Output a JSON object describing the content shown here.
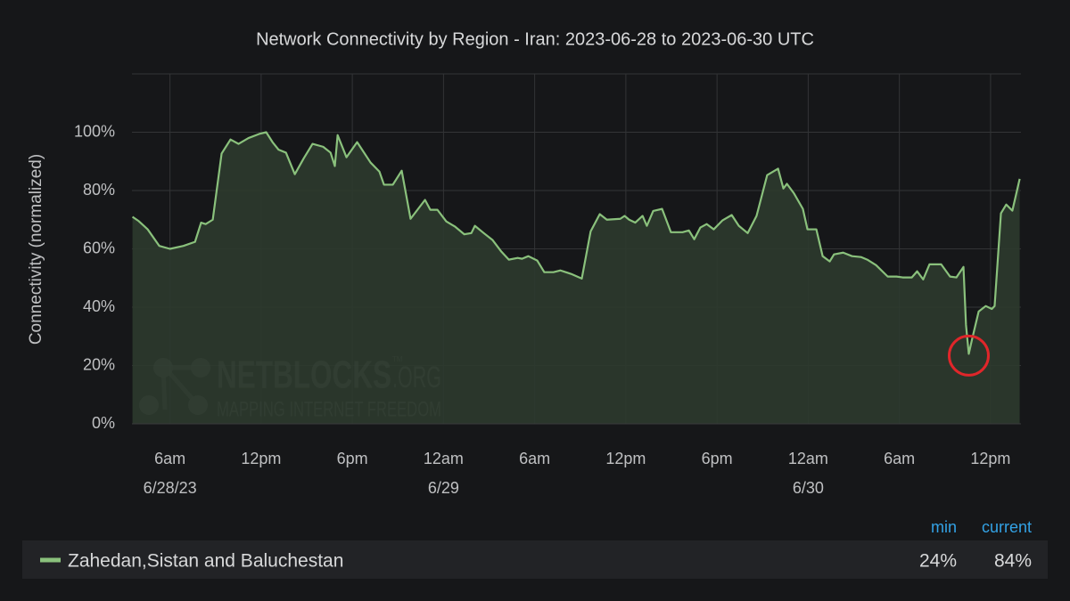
{
  "chart_data": {
    "type": "area",
    "title": "Network Connectivity by Region - Iran: 2023-06-28 to 2023-06-30 UTC",
    "y_label": "Connectivity (normalized)",
    "xlim": [
      "2023-06-28T03:30",
      "2023-06-30T14:00"
    ],
    "ylim": [
      0,
      120
    ],
    "yticks": [
      {
        "value": 0,
        "label": "0%"
      },
      {
        "value": 20,
        "label": "20%"
      },
      {
        "value": 40,
        "label": "40%"
      },
      {
        "value": 60,
        "label": "60%"
      },
      {
        "value": 80,
        "label": "80%"
      },
      {
        "value": 100,
        "label": "100%"
      },
      120
    ],
    "xticks": [
      {
        "value": "2023-06-28T06:00",
        "label": "6am"
      },
      {
        "value": "2023-06-28T12:00",
        "label": "12pm"
      },
      {
        "value": "2023-06-28T18:00",
        "label": "6pm"
      },
      {
        "value": "2023-06-29T00:00",
        "label": "12am"
      },
      {
        "value": "2023-06-29T06:00",
        "label": "6am"
      },
      {
        "value": "2023-06-29T12:00",
        "label": "12pm"
      },
      {
        "value": "2023-06-29T18:00",
        "label": "6pm"
      },
      {
        "value": "2023-06-30T00:00",
        "label": "12am"
      },
      {
        "value": "2023-06-30T06:00",
        "label": "6am"
      },
      {
        "value": "2023-06-30T12:00",
        "label": "12pm"
      }
    ],
    "date_labels": [
      {
        "value": "2023-06-28T06:00",
        "label": "6/28/23"
      },
      {
        "value": "2023-06-29T00:00",
        "label": "6/29"
      },
      {
        "value": "2023-06-30T00:00",
        "label": "6/30"
      }
    ],
    "grid": true,
    "x": [
      "2023-06-28T03:32",
      "2023-06-28T03:57",
      "2023-06-28T04:32",
      "2023-06-28T05:18",
      "2023-06-28T06:00",
      "2023-06-28T06:53",
      "2023-06-28T07:39",
      "2023-06-28T08:03",
      "2023-06-28T08:21",
      "2023-06-28T08:49",
      "2023-06-28T09:24",
      "2023-06-28T09:59",
      "2023-06-28T10:31",
      "2023-06-28T11:10",
      "2023-06-28T11:52",
      "2023-06-28T12:20",
      "2023-06-28T12:45",
      "2023-06-28T13:09",
      "2023-06-28T13:38",
      "2023-06-28T14:13",
      "2023-06-28T14:48",
      "2023-06-28T15:23",
      "2023-06-28T16:05",
      "2023-06-28T16:34",
      "2023-06-28T16:51",
      "2023-06-28T17:02",
      "2023-06-28T17:37",
      "2023-06-28T18:19",
      "2023-06-28T19:12",
      "2023-06-28T19:47",
      "2023-06-28T20:05",
      "2023-06-28T20:40",
      "2023-06-28T21:15",
      "2023-06-28T21:50",
      "2023-06-28T22:47",
      "2023-06-28T23:08",
      "2023-06-28T23:36",
      "2023-06-29T00:11",
      "2023-06-29T00:46",
      "2023-06-29T01:22",
      "2023-06-29T01:50",
      "2023-06-29T02:04",
      "2023-06-29T02:39",
      "2023-06-29T03:14",
      "2023-06-29T03:49",
      "2023-06-29T04:18",
      "2023-06-29T04:53",
      "2023-06-29T05:10",
      "2023-06-29T05:35",
      "2023-06-29T06:10",
      "2023-06-29T06:38",
      "2023-06-29T07:14",
      "2023-06-29T07:42",
      "2023-06-29T08:24",
      "2023-06-29T09:06",
      "2023-06-29T09:41",
      "2023-06-29T10:17",
      "2023-06-29T10:45",
      "2023-06-29T11:38",
      "2023-06-29T11:55",
      "2023-06-29T12:13",
      "2023-06-29T12:37",
      "2023-06-29T13:06",
      "2023-06-29T13:23",
      "2023-06-29T13:48",
      "2023-06-29T14:23",
      "2023-06-29T14:58",
      "2023-06-29T15:44",
      "2023-06-29T16:09",
      "2023-06-29T16:30",
      "2023-06-29T16:54",
      "2023-06-29T17:19",
      "2023-06-29T17:47",
      "2023-06-29T18:22",
      "2023-06-29T18:58",
      "2023-06-29T19:26",
      "2023-06-29T20:01",
      "2023-06-29T20:36",
      "2023-06-29T21:18",
      "2023-06-29T22:01",
      "2023-06-29T22:22",
      "2023-06-29T22:36",
      "2023-06-29T23:04",
      "2023-06-29T23:39",
      "2023-06-29T23:57",
      "2023-06-30T00:32",
      "2023-06-30T00:57",
      "2023-06-30T01:25",
      "2023-06-30T01:42",
      "2023-06-30T02:18",
      "2023-06-30T02:53",
      "2023-06-30T03:28",
      "2023-06-30T03:53",
      "2023-06-30T04:28",
      "2023-06-30T05:14",
      "2023-06-30T05:49",
      "2023-06-30T06:13",
      "2023-06-30T06:49",
      "2023-06-30T07:10",
      "2023-06-30T07:34",
      "2023-06-30T07:59",
      "2023-06-30T08:45",
      "2023-06-30T09:20",
      "2023-06-30T09:45",
      "2023-06-30T10:13",
      "2023-06-30T10:23",
      "2023-06-30T10:34",
      "2023-06-30T10:48",
      "2023-06-30T11:13",
      "2023-06-30T11:41",
      "2023-06-30T12:05",
      "2023-06-30T12:16",
      "2023-06-30T12:41",
      "2023-06-30T13:02",
      "2023-06-30T13:26",
      "2023-06-30T13:55"
    ],
    "series": [
      {
        "name": "Zahedan,Sistan and Baluchestan",
        "color": "#8ac17c",
        "fill": "#2c3a2d",
        "values": [
          71,
          69.5,
          66.7,
          61,
          60,
          61,
          62.4,
          69,
          68.5,
          70,
          92.7,
          97.5,
          96,
          98,
          99.4,
          100,
          96.6,
          94,
          93,
          85.6,
          91,
          96,
          95,
          93,
          88.4,
          99,
          91.4,
          96.6,
          89.6,
          86.5,
          82,
          82,
          86.8,
          70.3,
          76.8,
          73.4,
          73.4,
          69.4,
          67.6,
          65,
          65.4,
          67.9,
          65.4,
          63,
          59,
          56.3,
          56.9,
          56.6,
          57.5,
          56,
          52,
          52,
          52.6,
          51.4,
          49.8,
          66,
          71.9,
          70,
          70.3,
          71.3,
          70,
          69,
          71.3,
          67.9,
          73,
          73.7,
          65.7,
          65.7,
          66.3,
          63.3,
          67.3,
          68.5,
          66.7,
          69.8,
          71.6,
          67.9,
          65.4,
          71.3,
          85.3,
          87.5,
          80.7,
          82.3,
          79,
          73.7,
          66.7,
          66.7,
          57.5,
          55.7,
          58.1,
          58.7,
          57.5,
          57.2,
          56.3,
          54.4,
          50.5,
          50.5,
          50.2,
          50.2,
          52.3,
          49.5,
          54.7,
          54.7,
          50.5,
          50.2,
          53.8,
          33.9,
          24,
          29.4,
          38.5,
          40.4,
          39.4,
          40.4,
          72.2,
          75.2,
          73.1,
          84
        ],
        "stats": [
          {
            "name": "min",
            "value": 24,
            "label": "24%"
          },
          {
            "name": "current",
            "value": 84,
            "label": "84%"
          }
        ]
      }
    ],
    "annotation": {
      "shape": "circle",
      "point": 106,
      "color": "#e0262a"
    },
    "watermark": {
      "name": "NETBLOCKS",
      "suffix": ".ORG",
      "mark": "TM",
      "tagline": "MAPPING INTERNET FREEDOM"
    }
  }
}
